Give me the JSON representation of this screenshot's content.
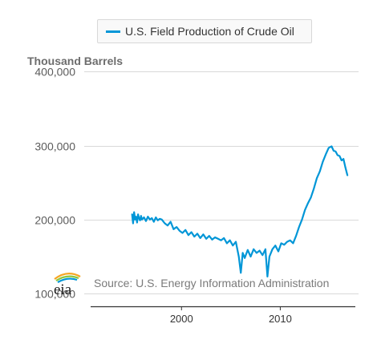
{
  "legend": {
    "label": "U.S. Field Production of Crude Oil"
  },
  "source": "Source: U.S. Energy Information Administration",
  "logo_text": "eia",
  "colors": {
    "series": "#0096d7",
    "grid": "#d9d9d9",
    "axis": "#333333",
    "text": "#5c5c5c"
  },
  "chart_data": {
    "type": "line",
    "title": "",
    "ylabel": "Thousand Barrels",
    "xlabel": "",
    "xlim": [
      1990.8,
      2017.6
    ],
    "ylim": [
      85000,
      410000
    ],
    "yticks": [
      100000,
      200000,
      300000,
      400000
    ],
    "ytick_labels": [
      "100,000",
      "200,000",
      "300,000",
      "400,000"
    ],
    "xticks": [
      2000,
      2010
    ],
    "xtick_labels": [
      "2000",
      "2010"
    ],
    "grid": "horizontal",
    "legend_position": "top",
    "series": [
      {
        "name": "U.S. Field Production of Crude Oil",
        "x": [
          1995.0,
          1995.1,
          1995.2,
          1995.3,
          1995.4,
          1995.5,
          1995.6,
          1995.7,
          1995.8,
          1995.9,
          1996.0,
          1996.2,
          1996.4,
          1996.6,
          1996.8,
          1997.0,
          1997.2,
          1997.4,
          1997.6,
          1997.8,
          1998.0,
          1998.3,
          1998.6,
          1998.9,
          1999.2,
          1999.5,
          1999.8,
          2000.1,
          2000.4,
          2000.7,
          2001.0,
          2001.3,
          2001.6,
          2001.9,
          2002.2,
          2002.5,
          2002.8,
          2003.1,
          2003.4,
          2003.7,
          2004.0,
          2004.3,
          2004.6,
          2004.9,
          2005.2,
          2005.5,
          2005.8,
          2006.0,
          2006.2,
          2006.4,
          2006.7,
          2007.0,
          2007.3,
          2007.6,
          2007.9,
          2008.2,
          2008.5,
          2008.7,
          2008.9,
          2009.2,
          2009.5,
          2009.8,
          2010.1,
          2010.4,
          2010.7,
          2011.0,
          2011.3,
          2011.6,
          2011.9,
          2012.2,
          2012.5,
          2012.8,
          2013.1,
          2013.4,
          2013.7,
          2014.0,
          2014.3,
          2014.6,
          2014.9,
          2015.2,
          2015.4,
          2015.6,
          2015.8,
          2016.0,
          2016.2,
          2016.4,
          2016.6,
          2016.8
        ],
        "y": [
          207000,
          195000,
          210000,
          200000,
          204000,
          196000,
          207000,
          202000,
          199000,
          205000,
          200000,
          203000,
          198000,
          204000,
          200000,
          202000,
          197000,
          203000,
          199000,
          201000,
          200000,
          195000,
          192000,
          197000,
          187000,
          190000,
          185000,
          182000,
          186000,
          179000,
          183000,
          177000,
          181000,
          175000,
          180000,
          174000,
          178000,
          173000,
          176000,
          174000,
          172000,
          175000,
          168000,
          172000,
          165000,
          170000,
          150000,
          128000,
          155000,
          148000,
          159000,
          150000,
          160000,
          155000,
          158000,
          152000,
          160000,
          123000,
          150000,
          160000,
          165000,
          157000,
          168000,
          166000,
          170000,
          172000,
          168000,
          178000,
          190000,
          200000,
          213000,
          222000,
          230000,
          242000,
          256000,
          265000,
          278000,
          288000,
          297000,
          299000,
          293000,
          292000,
          287000,
          286000,
          280000,
          282000,
          270000,
          260000
        ]
      }
    ]
  }
}
